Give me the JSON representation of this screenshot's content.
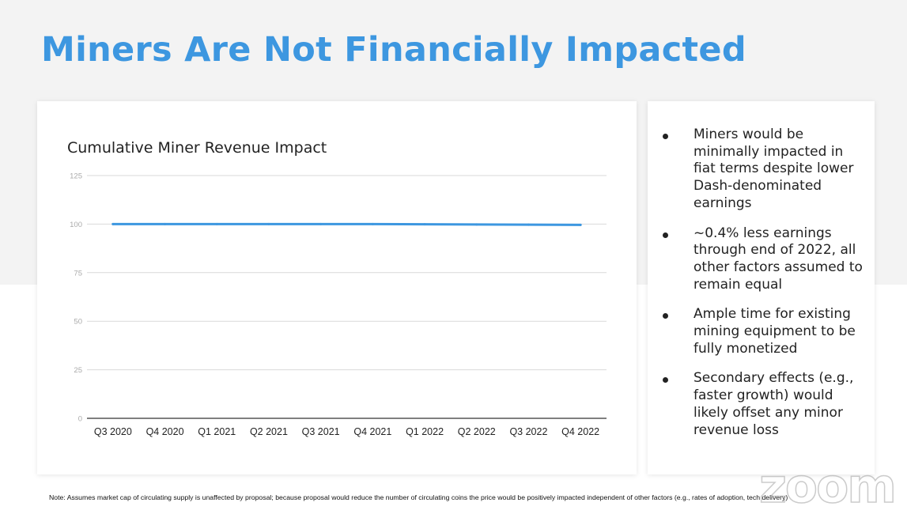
{
  "slide": {
    "title": "Miners Are Not Financially Impacted",
    "footnote": "Note: Assumes market cap of circulating supply is unaffected by proposal; because proposal would reduce the number of circulating coins the price would be positively impacted independent of other factors (e.g., rates of adoption, tech delivery)",
    "watermark": "zoom"
  },
  "bullets": [
    "Miners would be minimally impacted in fiat terms despite lower Dash-denominated earnings",
    "~0.4% less earnings through end of 2022, all other factors assumed to remain equal",
    "Ample time for existing mining equipment to be fully monetized",
    "Secondary effects (e.g., faster growth) would likely offset any minor revenue loss"
  ],
  "colors": {
    "accent": "#3d97e0",
    "series_line": "#3d97e0",
    "gridline": "#d9d9d9",
    "axis": "#333333"
  },
  "chart_data": {
    "type": "line",
    "title": "Cumulative Miner Revenue Impact",
    "xlabel": "",
    "ylabel": "",
    "categories": [
      "Q3 2020",
      "Q4 2020",
      "Q1 2021",
      "Q2 2021",
      "Q3 2021",
      "Q4 2021",
      "Q1 2022",
      "Q2 2022",
      "Q3 2022",
      "Q4 2022"
    ],
    "series": [
      {
        "values": [
          100,
          100,
          100,
          100,
          100,
          100,
          99.9,
          99.8,
          99.7,
          99.6
        ]
      }
    ],
    "yticks": [
      0,
      25,
      50,
      75,
      100,
      125
    ],
    "ylim": [
      0,
      125
    ],
    "grid": true,
    "legend": "none"
  }
}
